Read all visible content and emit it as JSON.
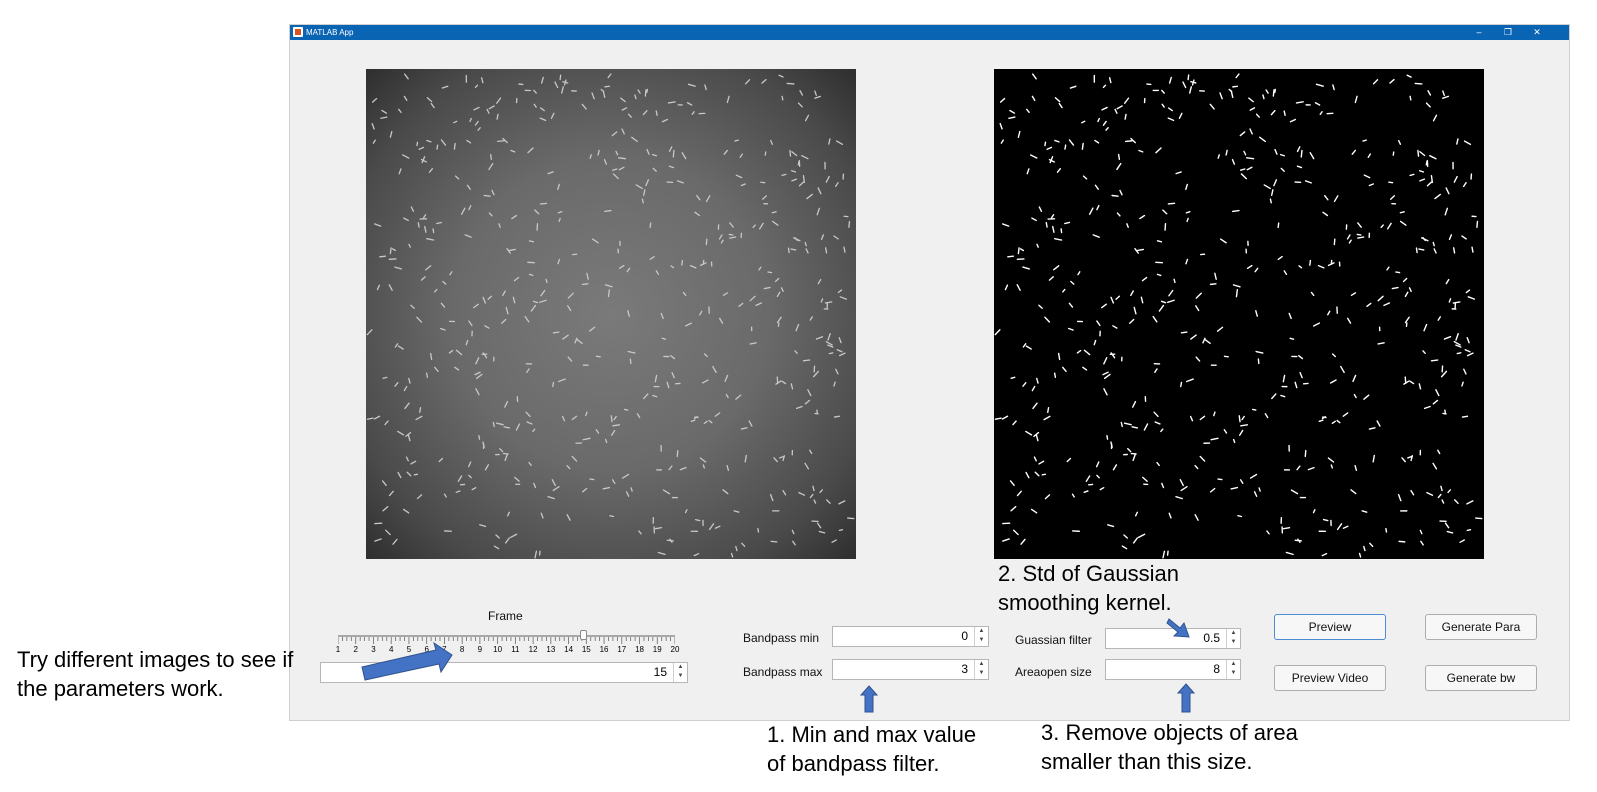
{
  "window": {
    "title": "MATLAB App",
    "controls": {
      "minimize": "–",
      "restore": "❐",
      "close": "✕"
    },
    "title_bar_color": "#0a64b4"
  },
  "frame": {
    "label": "Frame",
    "value": "15",
    "slider_tick_labels": [
      "1",
      "2",
      "3",
      "4",
      "5",
      "6",
      "7",
      "8",
      "9",
      "10",
      "11",
      "12",
      "13",
      "14",
      "15",
      "16",
      "17",
      "18",
      "19",
      "20"
    ],
    "slider_value": 15
  },
  "bandpass": {
    "min_label": "Bandpass min",
    "min_value": "0",
    "max_label": "Bandpass max",
    "max_value": "3"
  },
  "gaussian": {
    "label": "Guassian filter",
    "value": "0.5"
  },
  "areaopen": {
    "label": "Areaopen size",
    "value": "8"
  },
  "buttons": {
    "preview": "Preview",
    "generate_para": "Generate Para",
    "preview_video": "Preview Video",
    "generate_bw": "Generate bw"
  },
  "annotations": {
    "left_line1": "Try different images to see if",
    "left_line2": "the parameters work.",
    "gaussian_line1": "2. Std of Gaussian",
    "gaussian_line2": "smoothing kernel.",
    "bandpass_line1": "1. Min and max value",
    "bandpass_line2": "of bandpass filter.",
    "area_line1": "3. Remove objects of area",
    "area_line2": "smaller than this size."
  },
  "colors": {
    "arrow": "#4472c4",
    "arrow_border": "#2f528f",
    "panel": "#f0f0f0"
  }
}
